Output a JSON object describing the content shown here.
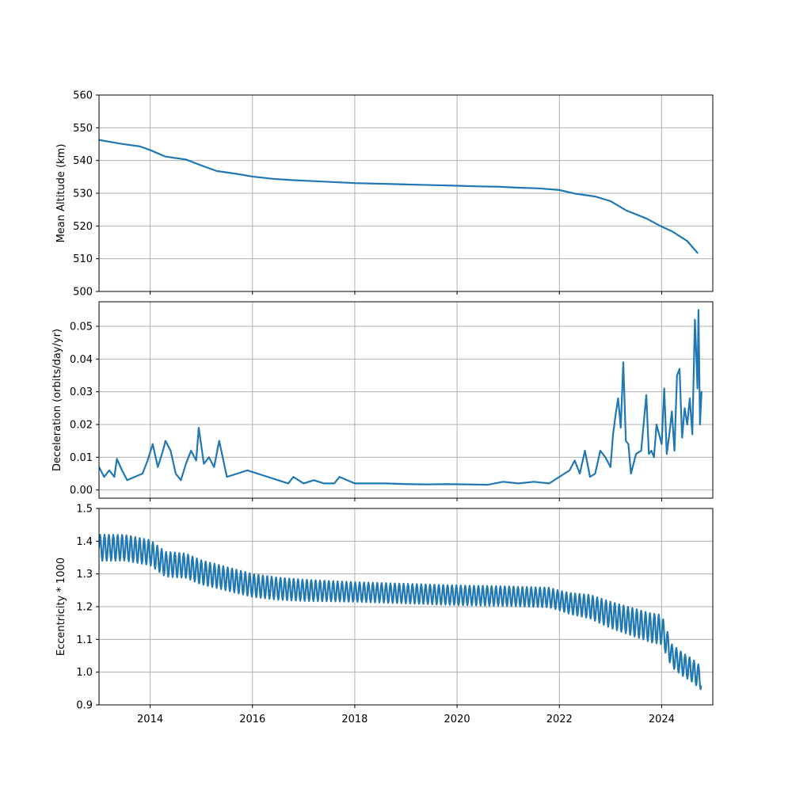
{
  "colors": {
    "series": "#1f77b4",
    "grid": "#b0b0b0",
    "frame": "#000000"
  },
  "chart_data": [
    {
      "type": "line",
      "xlabel": "",
      "ylabel": "Mean Altitude (km)",
      "xlim": [
        2013.0,
        2025.0
      ],
      "ylim": [
        500,
        560
      ],
      "xticks": [
        2014,
        2016,
        2018,
        2020,
        2022,
        2024
      ],
      "xtick_labels": [],
      "yticks": [
        500,
        510,
        520,
        530,
        540,
        550,
        560
      ],
      "ytick_labels": [
        "500",
        "510",
        "520",
        "530",
        "540",
        "550",
        "560"
      ],
      "grid": true,
      "series": [
        {
          "x": [
            2013.0,
            2013.4,
            2013.8,
            2014.0,
            2014.3,
            2014.7,
            2015.0,
            2015.3,
            2015.7,
            2016.0,
            2016.4,
            2016.8,
            2017.2,
            2017.6,
            2018.0,
            2018.5,
            2019.0,
            2019.5,
            2020.0,
            2020.4,
            2020.8,
            2021.2,
            2021.6,
            2022.0,
            2022.3,
            2022.7,
            2023.0,
            2023.3,
            2023.7,
            2024.0,
            2024.2,
            2024.5,
            2024.7
          ],
          "y": [
            546.3,
            545.2,
            544.3,
            543.2,
            541.2,
            540.3,
            538.5,
            536.8,
            535.9,
            535.1,
            534.4,
            534.0,
            533.7,
            533.4,
            533.1,
            532.9,
            532.7,
            532.5,
            532.3,
            532.1,
            532.0,
            531.7,
            531.5,
            531.0,
            529.9,
            529.0,
            527.6,
            524.8,
            522.3,
            519.8,
            518.4,
            515.4,
            511.8
          ]
        }
      ]
    },
    {
      "type": "line",
      "xlabel": "",
      "ylabel": "Deceleration (orbits/day/yr)",
      "xlim": [
        2013.0,
        2025.0
      ],
      "ylim": [
        -0.0025,
        0.0575
      ],
      "xticks": [
        2014,
        2016,
        2018,
        2020,
        2022,
        2024
      ],
      "xtick_labels": [],
      "yticks": [
        0.0,
        0.01,
        0.02,
        0.03,
        0.04,
        0.05
      ],
      "ytick_labels": [
        "0.00",
        "0.01",
        "0.02",
        "0.03",
        "0.04",
        "0.05"
      ],
      "grid": true,
      "series": [
        {
          "x": [
            2013.0,
            2013.1,
            2013.2,
            2013.3,
            2013.35,
            2013.45,
            2013.55,
            2013.7,
            2013.85,
            2013.95,
            2014.05,
            2014.15,
            2014.25,
            2014.3,
            2014.4,
            2014.5,
            2014.6,
            2014.7,
            2014.8,
            2014.9,
            2014.95,
            2015.05,
            2015.15,
            2015.25,
            2015.35,
            2015.5,
            2015.7,
            2015.9,
            2016.1,
            2016.3,
            2016.5,
            2016.7,
            2016.8,
            2017.0,
            2017.2,
            2017.4,
            2017.6,
            2017.7,
            2018.0,
            2018.3,
            2018.6,
            2019.0,
            2019.4,
            2019.8,
            2020.2,
            2020.6,
            2020.9,
            2021.2,
            2021.5,
            2021.8,
            2022.0,
            2022.2,
            2022.3,
            2022.4,
            2022.5,
            2022.6,
            2022.7,
            2022.8,
            2022.9,
            2023.0,
            2023.05,
            2023.1,
            2023.15,
            2023.2,
            2023.25,
            2023.3,
            2023.35,
            2023.4,
            2023.5,
            2023.6,
            2023.7,
            2023.75,
            2023.8,
            2023.85,
            2023.9,
            2024.0,
            2024.05,
            2024.1,
            2024.15,
            2024.2,
            2024.25,
            2024.3,
            2024.35,
            2024.4,
            2024.45,
            2024.5,
            2024.55,
            2024.6,
            2024.65,
            2024.68,
            2024.7,
            2024.72,
            2024.75,
            2024.78
          ],
          "y": [
            0.007,
            0.004,
            0.006,
            0.004,
            0.0095,
            0.006,
            0.003,
            0.004,
            0.005,
            0.009,
            0.014,
            0.007,
            0.012,
            0.015,
            0.012,
            0.005,
            0.003,
            0.008,
            0.012,
            0.009,
            0.019,
            0.008,
            0.01,
            0.007,
            0.015,
            0.004,
            0.005,
            0.006,
            0.005,
            0.004,
            0.003,
            0.002,
            0.004,
            0.002,
            0.003,
            0.002,
            0.002,
            0.004,
            0.002,
            0.002,
            0.002,
            0.0018,
            0.0017,
            0.0018,
            0.0017,
            0.0016,
            0.0025,
            0.002,
            0.0025,
            0.002,
            0.004,
            0.006,
            0.009,
            0.005,
            0.012,
            0.004,
            0.005,
            0.012,
            0.01,
            0.007,
            0.017,
            0.023,
            0.028,
            0.019,
            0.039,
            0.015,
            0.014,
            0.005,
            0.011,
            0.012,
            0.029,
            0.011,
            0.012,
            0.01,
            0.02,
            0.014,
            0.031,
            0.011,
            0.017,
            0.024,
            0.012,
            0.035,
            0.037,
            0.016,
            0.025,
            0.02,
            0.028,
            0.017,
            0.052,
            0.04,
            0.031,
            0.055,
            0.02,
            0.03
          ]
        }
      ]
    },
    {
      "type": "line",
      "xlabel": "",
      "ylabel": "Eccentricity * 1000",
      "xlim": [
        2013.0,
        2025.0
      ],
      "ylim": [
        0.9,
        1.5
      ],
      "xticks": [
        2014,
        2016,
        2018,
        2020,
        2022,
        2024
      ],
      "xtick_labels": [
        "2014",
        "2016",
        "2018",
        "2020",
        "2022",
        "2024"
      ],
      "yticks": [
        0.9,
        1.0,
        1.1,
        1.2,
        1.3,
        1.4,
        1.5
      ],
      "ytick_labels": [
        "0.9",
        "1.0",
        "1.1",
        "1.2",
        "1.3",
        "1.4",
        "1.5"
      ],
      "grid": true,
      "series": [
        {
          "oscillation_period_years": 0.086,
          "trend_x": [
            2013.0,
            2013.5,
            2014.0,
            2014.3,
            2014.7,
            2015.0,
            2015.5,
            2016.0,
            2016.5,
            2017.0,
            2018.0,
            2019.0,
            2020.0,
            2021.0,
            2021.8,
            2022.2,
            2022.6,
            2023.0,
            2023.4,
            2023.8,
            2024.0,
            2024.2,
            2024.4,
            2024.6,
            2024.78
          ],
          "trend_y": [
            1.38,
            1.38,
            1.365,
            1.33,
            1.325,
            1.305,
            1.285,
            1.265,
            1.255,
            1.25,
            1.245,
            1.24,
            1.235,
            1.232,
            1.228,
            1.21,
            1.2,
            1.175,
            1.155,
            1.135,
            1.13,
            1.05,
            1.025,
            1.005,
            0.98
          ],
          "amplitude_x": [
            2013.0,
            2016.0,
            2018.0,
            2020.0,
            2022.0,
            2023.0,
            2024.0,
            2024.2,
            2024.78
          ],
          "amplitude_y": [
            0.04,
            0.035,
            0.03,
            0.03,
            0.03,
            0.04,
            0.045,
            0.035,
            0.035
          ]
        }
      ]
    }
  ]
}
